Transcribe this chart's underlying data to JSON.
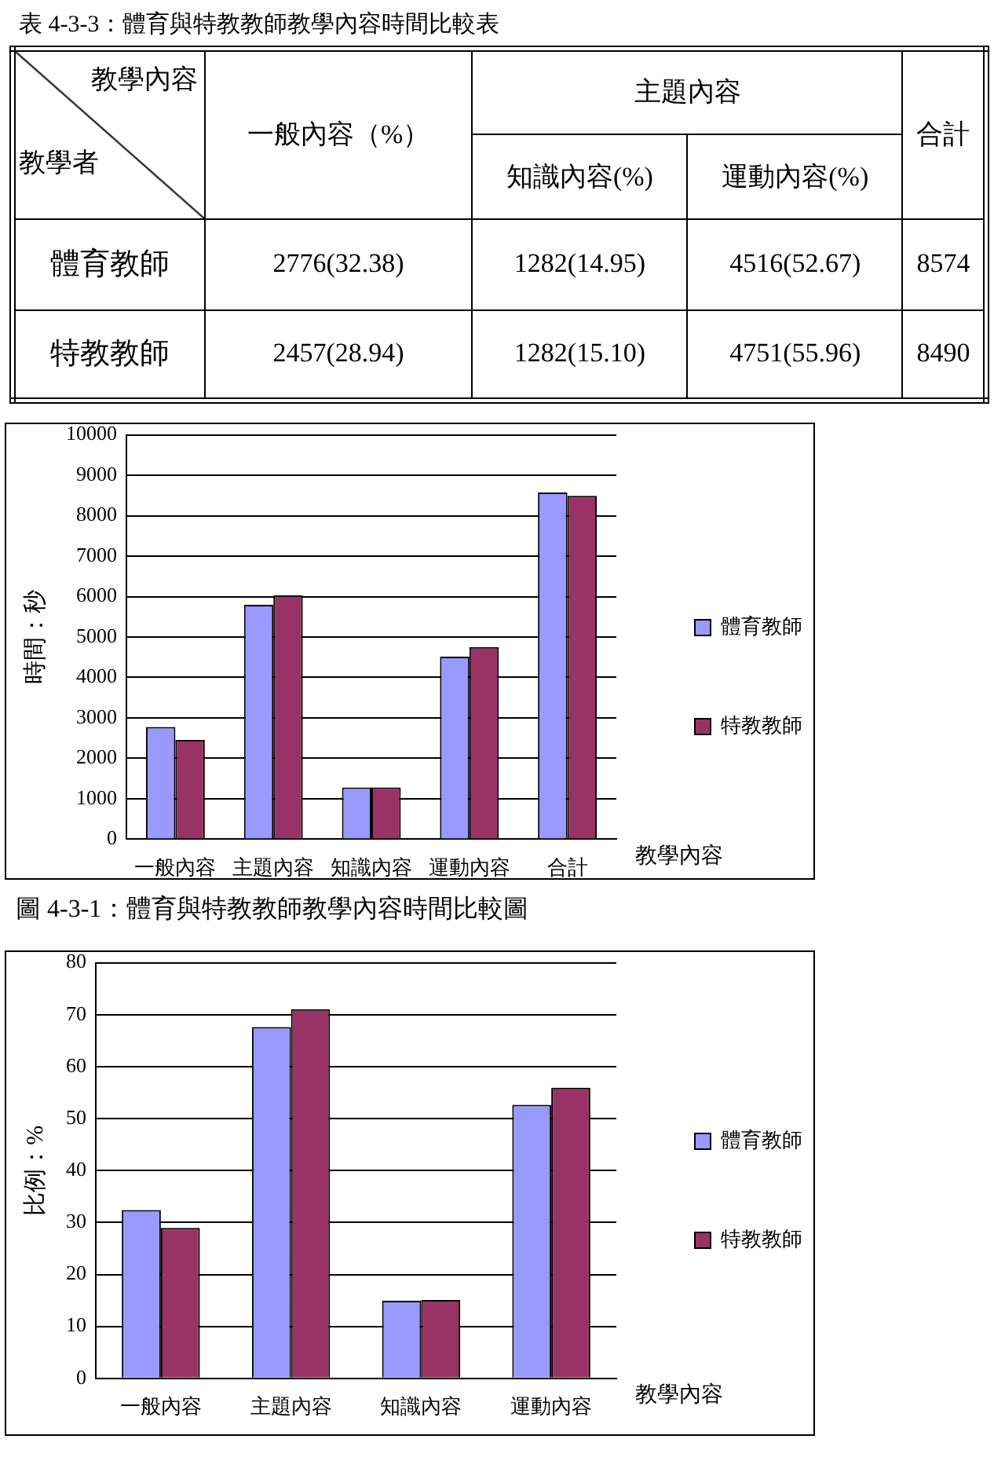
{
  "chart_data": [
    {
      "type": "other",
      "title": "表 4-3-3：體育與特教教師教學內容時間比較表",
      "annotations": [
        "教學內容",
        "教學者",
        "一般內容（%）",
        "主題內容",
        "合計",
        "知識內容(%)",
        "運動內容(%)",
        "體育教師",
        "2776(32.38)",
        "1282(14.95)",
        "4516(52.67)",
        "8574",
        "特教教師",
        "2457(28.94)",
        "1282(15.10)",
        "4751(55.96)",
        "8490"
      ]
    },
    {
      "type": "bar",
      "title": "圖 4-3-1：體育與特教教師教學內容時間比較圖",
      "ylabel": "時間：秒",
      "xlabel": "教學內容",
      "categories": [
        "一般內容",
        "主題內容",
        "知識內容",
        "運動內容",
        "合計"
      ],
      "series": [
        {
          "name": "體育教師",
          "color": "#9999ff",
          "values": [
            2776,
            5798,
            1282,
            4516,
            8574
          ]
        },
        {
          "name": "特教教師",
          "color": "#993366",
          "values": [
            2457,
            6033,
            1282,
            4751,
            8490
          ]
        }
      ],
      "ylim": [
        0,
        10000
      ],
      "yticks": [
        0,
        1000,
        2000,
        3000,
        4000,
        5000,
        6000,
        7000,
        8000,
        9000,
        10000
      ],
      "grid": "y",
      "legend": "right"
    },
    {
      "type": "bar",
      "ylabel": "比例：%",
      "xlabel": "教學內容",
      "categories": [
        "一般內容",
        "主題內容",
        "知識內容",
        "運動內容"
      ],
      "series": [
        {
          "name": "體育教師",
          "color": "#9999ff",
          "values": [
            32.38,
            67.62,
            14.95,
            52.67
          ]
        },
        {
          "name": "特教教師",
          "color": "#993366",
          "values": [
            28.94,
            71.06,
            15.1,
            55.96
          ]
        }
      ],
      "ylim": [
        0,
        80
      ],
      "yticks": [
        0,
        10,
        20,
        30,
        40,
        50,
        60,
        70,
        80
      ],
      "grid": "y",
      "legend": "right"
    }
  ]
}
